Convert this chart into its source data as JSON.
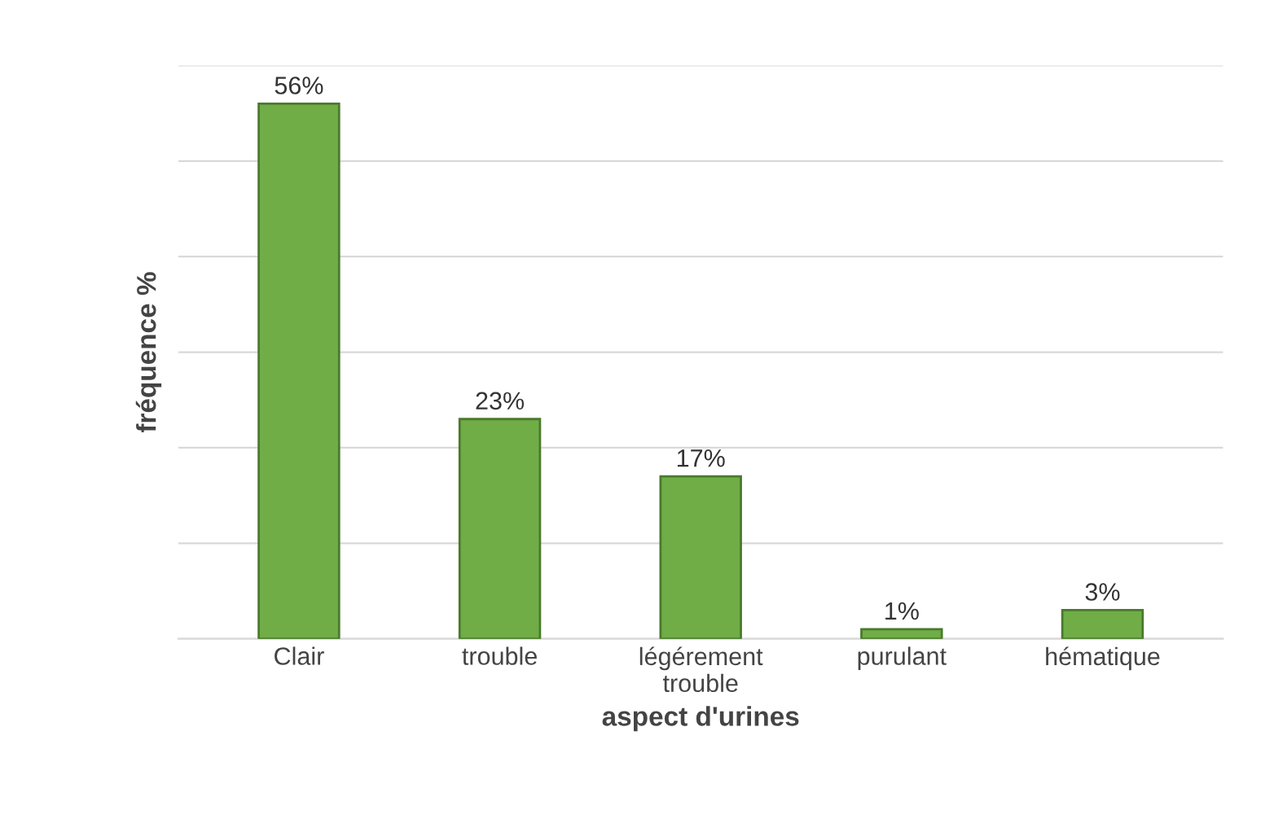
{
  "chart_data": {
    "type": "bar",
    "xlabel": "aspect d'urines",
    "ylabel": "fréquence %",
    "categories": [
      "Clair",
      "trouble",
      "légérement trouble",
      "purulant",
      "hématique"
    ],
    "values": [
      56,
      23,
      17,
      1,
      3
    ],
    "value_labels": [
      "56%",
      "23%",
      "17%",
      "1%",
      "3%"
    ],
    "color": "#70ad47",
    "ylim": [
      0,
      60
    ],
    "yticks": [
      {
        "value": 0,
        "label": null
      },
      {
        "value": 10,
        "label": null
      },
      {
        "value": 20,
        "label": null
      },
      {
        "value": 30,
        "label": null
      },
      {
        "value": 40,
        "label": null
      },
      {
        "value": 50,
        "label": null
      },
      {
        "value": 60,
        "label": null
      }
    ],
    "grid": "y",
    "legend": false
  }
}
